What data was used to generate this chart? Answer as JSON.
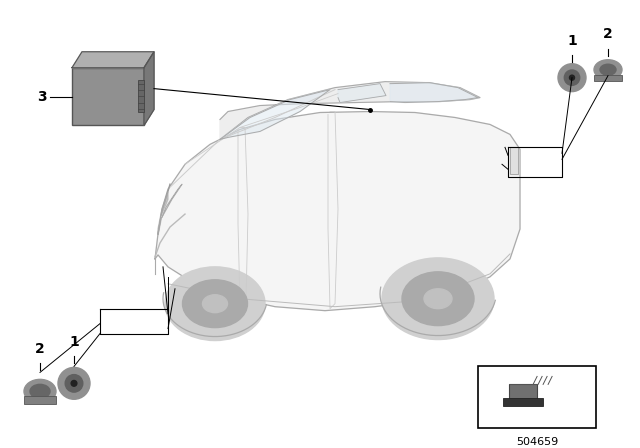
{
  "bg_color": "#ffffff",
  "diagram_number": "504659",
  "fig_width": 6.4,
  "fig_height": 4.48,
  "dpi": 100
}
